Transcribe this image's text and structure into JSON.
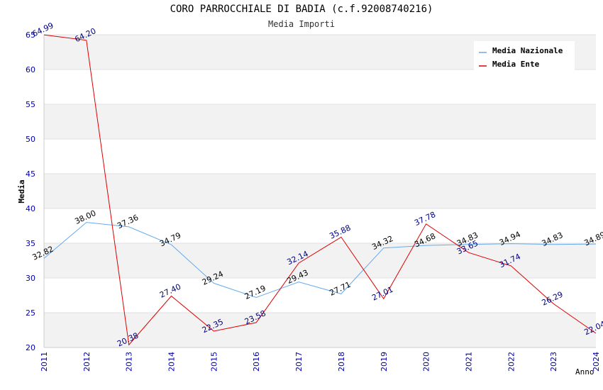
{
  "chart_data": {
    "type": "line",
    "title": "CORO PARROCCHIALE DI BADIA (c.f.92008740216)",
    "subtitle": "Media Importi",
    "xlabel": "Anno",
    "ylabel": "Media",
    "x": [
      "2011",
      "2012",
      "2013",
      "2014",
      "2015",
      "2016",
      "2017",
      "2018",
      "2019",
      "2020",
      "2021",
      "2022",
      "2023",
      "2024"
    ],
    "ylim": [
      20,
      65
    ],
    "yticks": [
      "20",
      "25",
      "30",
      "35",
      "40",
      "45",
      "50",
      "55",
      "60",
      "65"
    ],
    "grid": true,
    "legend": "top-right",
    "series": [
      {
        "name": "Media Nazionale",
        "color": "#66aaee",
        "label_color": "#000000",
        "values": [
          32.82,
          38.0,
          37.36,
          34.79,
          29.24,
          27.19,
          29.43,
          27.71,
          34.32,
          34.68,
          34.83,
          34.94,
          34.83,
          34.89
        ],
        "labels": [
          "32.82",
          "38.00",
          "37.36",
          "34.79",
          "29.24",
          "27.19",
          "29.43",
          "27.71",
          "34.32",
          "34.68",
          "34.83",
          "34.94",
          "34.83",
          "34.89"
        ]
      },
      {
        "name": "Media Ente",
        "color": "#dd0000",
        "label_color": "#000080",
        "values": [
          64.99,
          64.2,
          20.38,
          27.4,
          22.35,
          23.58,
          32.14,
          35.88,
          27.01,
          37.78,
          33.65,
          31.74,
          26.29,
          22.04
        ],
        "labels": [
          "64.99",
          "64.20",
          "20.38",
          "27.40",
          "22.35",
          "23.58",
          "32.14",
          "35.88",
          "27.01",
          "37.78",
          "33.65",
          "31.74",
          "26.29",
          "22.04"
        ]
      }
    ]
  }
}
